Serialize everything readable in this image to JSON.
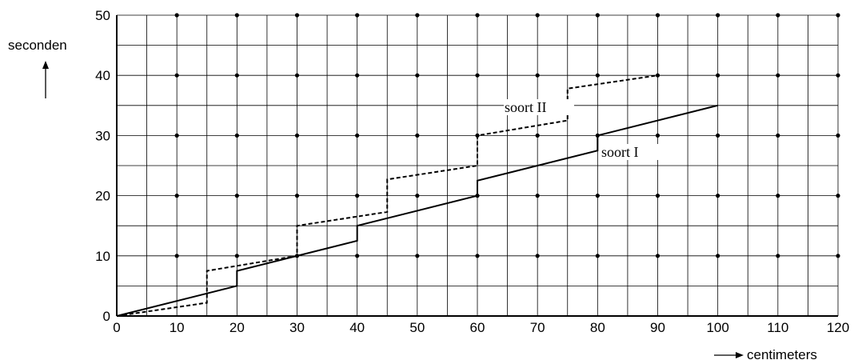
{
  "chart_data": {
    "type": "line",
    "xlabel": "centimeters",
    "ylabel": "seconden",
    "xlim": [
      0,
      120
    ],
    "ylim": [
      0,
      50
    ],
    "x_ticks": [
      0,
      10,
      20,
      30,
      40,
      50,
      60,
      70,
      80,
      90,
      100,
      110,
      120
    ],
    "y_ticks": [
      0,
      10,
      20,
      30,
      40,
      50
    ],
    "x_tick_labels": [
      "0",
      "10",
      "20",
      "30",
      "40",
      "50",
      "60",
      "70",
      "80",
      "90",
      "100",
      "110",
      "120"
    ],
    "y_tick_labels": [
      "0",
      "10",
      "20",
      "30",
      "40",
      "50"
    ],
    "grid": true,
    "series": [
      {
        "name": "soort I",
        "style": "solid",
        "x": [
          0,
          20,
          20,
          40,
          40,
          60,
          60,
          80,
          80,
          100
        ],
        "y": [
          0,
          5,
          7.5,
          12.5,
          15,
          20,
          22.5,
          27.5,
          30,
          35
        ]
      },
      {
        "name": "soort II",
        "style": "dashed",
        "x": [
          0,
          15,
          15,
          30,
          30,
          45,
          45,
          60,
          60,
          75,
          75,
          90
        ],
        "y": [
          0,
          2.2,
          7.5,
          10,
          15,
          17.3,
          22.7,
          25,
          30,
          32.5,
          37.8,
          40
        ]
      }
    ]
  }
}
